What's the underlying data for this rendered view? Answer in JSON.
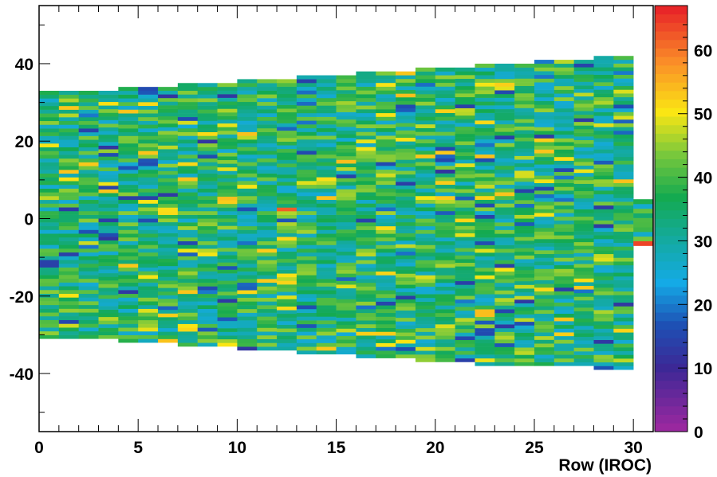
{
  "chart_data": {
    "type": "heatmap",
    "title": "",
    "xlabel": "Row (IROC)",
    "ylabel": "",
    "xlim": [
      0,
      31
    ],
    "ylim": [
      -55,
      55
    ],
    "x_ticks": [
      "0",
      "5",
      "10",
      "15",
      "20",
      "25",
      "30"
    ],
    "y_ticks": [
      "40",
      "20",
      "0",
      "-20",
      "-40"
    ],
    "colorbar": {
      "range": [
        0,
        67
      ],
      "ticks": [
        "0",
        "10",
        "20",
        "30",
        "40",
        "50",
        "60"
      ]
    },
    "rows": 31,
    "pads_per_row": [
      66,
      66,
      66,
      68,
      68,
      68,
      70,
      70,
      70,
      72,
      72,
      72,
      74,
      74,
      74,
      76,
      76,
      76,
      78,
      78,
      78,
      80,
      80,
      80,
      82,
      82,
      82,
      84,
      84,
      84,
      10
    ],
    "row_y_range": [
      [
        -31,
        33
      ],
      [
        -31,
        33
      ],
      [
        -31,
        33
      ],
      [
        -31,
        33
      ],
      [
        -32,
        34
      ],
      [
        -32,
        34
      ],
      [
        -32,
        34
      ],
      [
        -33,
        35
      ],
      [
        -33,
        35
      ],
      [
        -33,
        35
      ],
      [
        -34,
        36
      ],
      [
        -34,
        36
      ],
      [
        -34,
        36
      ],
      [
        -35,
        37
      ],
      [
        -35,
        37
      ],
      [
        -35,
        37
      ],
      [
        -36,
        38
      ],
      [
        -36,
        38
      ],
      [
        -36,
        38
      ],
      [
        -37,
        39
      ],
      [
        -37,
        39
      ],
      [
        -37,
        39
      ],
      [
        -38,
        40
      ],
      [
        -38,
        40
      ],
      [
        -38,
        40
      ],
      [
        -38,
        41
      ],
      [
        -38,
        41
      ],
      [
        -38,
        41
      ],
      [
        -39,
        42
      ],
      [
        -39,
        42
      ],
      [
        -7,
        5
      ]
    ],
    "typical_value_range": [
      25,
      45
    ],
    "hot_cells": [
      {
        "row": 30,
        "y": -6.5,
        "value": 64
      },
      {
        "row": 25,
        "y": -30.5,
        "value": 62
      },
      {
        "row": 12,
        "y": 2.5,
        "value": 62
      }
    ]
  }
}
